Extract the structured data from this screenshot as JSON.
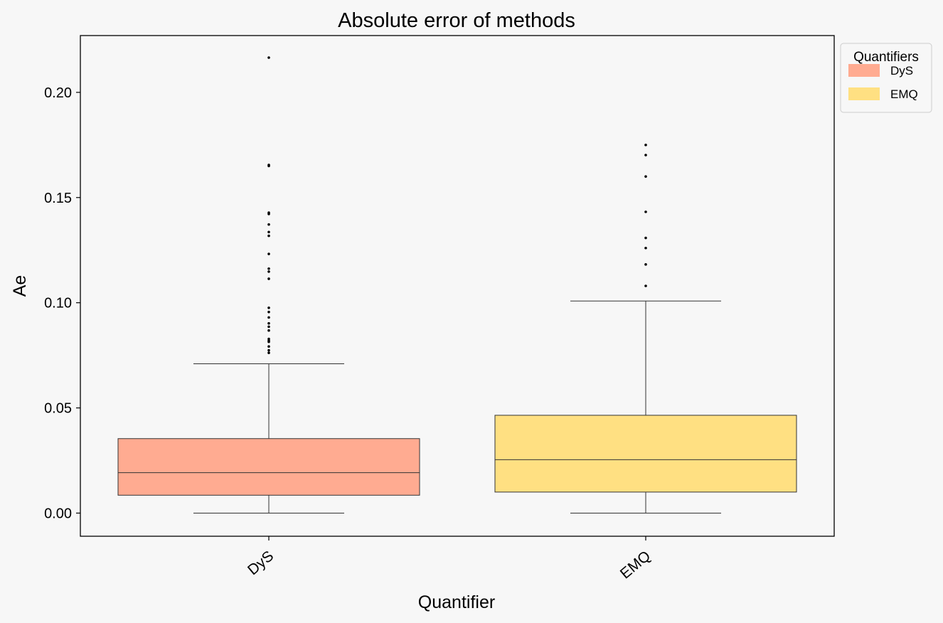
{
  "chart_data": {
    "type": "box",
    "title": "Absolute error of methods",
    "xlabel": "Quantifier",
    "ylabel": "Ae",
    "categories": [
      "DyS",
      "EMQ"
    ],
    "ylim": [
      -0.011,
      0.227
    ],
    "yticks": [
      {
        "value": 0.0,
        "label": "0.00"
      },
      {
        "value": 0.05,
        "label": "0.05"
      },
      {
        "value": 0.1,
        "label": "0.10"
      },
      {
        "value": 0.15,
        "label": "0.15"
      },
      {
        "value": 0.2,
        "label": "0.20"
      }
    ],
    "grid": false,
    "legend": {
      "title": "Quantifiers",
      "position": "outside-top-right",
      "entries": [
        "DyS",
        "EMQ"
      ]
    },
    "series": [
      {
        "name": "DyS",
        "color": "#ffab91",
        "whisker_low": 0.0,
        "q1": 0.0085,
        "median": 0.0192,
        "q3": 0.0354,
        "whisker_high": 0.071,
        "outliers": [
          0.2165,
          0.1655,
          0.165,
          0.1428,
          0.1422,
          0.1372,
          0.1336,
          0.1318,
          0.1232,
          0.1162,
          0.1148,
          0.1114,
          0.0976,
          0.0956,
          0.093,
          0.0902,
          0.0886,
          0.0868,
          0.0828,
          0.082,
          0.0814,
          0.0792,
          0.0774,
          0.0762
        ]
      },
      {
        "name": "EMQ",
        "color": "#ffe082",
        "whisker_low": 0.0,
        "q1": 0.01,
        "median": 0.0254,
        "q3": 0.0465,
        "whisker_high": 0.1008,
        "outliers": [
          0.175,
          0.1702,
          0.16,
          0.1432,
          0.1308,
          0.126,
          0.1182,
          0.108
        ]
      }
    ]
  }
}
